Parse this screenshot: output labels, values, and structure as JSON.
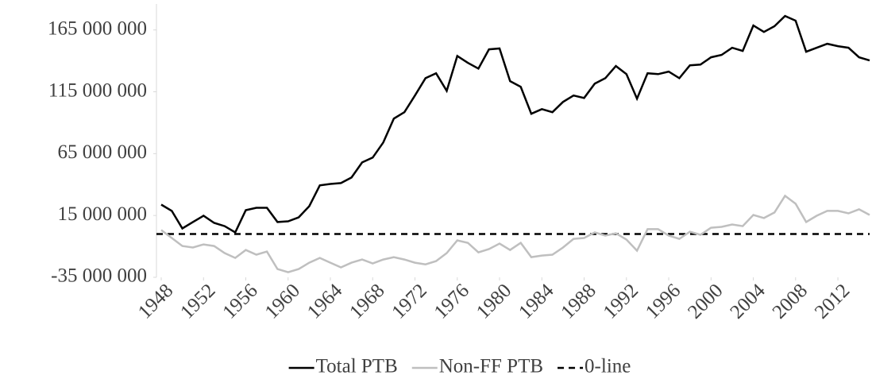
{
  "chart_data": {
    "type": "line",
    "x": [
      1948,
      1949,
      1950,
      1951,
      1952,
      1953,
      1954,
      1955,
      1956,
      1957,
      1958,
      1959,
      1960,
      1961,
      1962,
      1963,
      1964,
      1965,
      1966,
      1967,
      1968,
      1969,
      1970,
      1971,
      1972,
      1973,
      1974,
      1975,
      1976,
      1977,
      1978,
      1979,
      1980,
      1981,
      1982,
      1983,
      1984,
      1985,
      1986,
      1987,
      1988,
      1989,
      1990,
      1991,
      1992,
      1993,
      1994,
      1995,
      1996,
      1997,
      1998,
      1999,
      2000,
      2001,
      2002,
      2003,
      2004,
      2005,
      2006,
      2007,
      2008,
      2009,
      2010,
      2011,
      2012,
      2013,
      2014,
      2015
    ],
    "xlim": [
      1948,
      2015
    ],
    "xticks": [
      1948,
      1952,
      1956,
      1960,
      1964,
      1968,
      1972,
      1976,
      1980,
      1984,
      1988,
      1992,
      1996,
      2000,
      2004,
      2008,
      2012
    ],
    "ylim": [
      -35000000,
      186000000
    ],
    "yticks": [
      {
        "value": 165000000,
        "label": "165 000 000"
      },
      {
        "value": 115000000,
        "label": "115 000 000"
      },
      {
        "value": 65000000,
        "label": "65 000 000"
      },
      {
        "value": 15000000,
        "label": "15 000 000"
      },
      {
        "value": -35000000,
        "label": "-35 000 000"
      }
    ],
    "series": [
      {
        "name": "Total PTB",
        "color": "#000000",
        "values": [
          23800000,
          18700000,
          4500000,
          9700000,
          14800000,
          9000000,
          6400000,
          1300000,
          19300000,
          21200000,
          21200000,
          9700000,
          10300000,
          13500000,
          22500000,
          39300000,
          40500000,
          41200000,
          45700000,
          57900000,
          61800000,
          74000000,
          93300000,
          98500000,
          112000000,
          126000000,
          130000000,
          115800000,
          144000000,
          138400000,
          133800000,
          149300000,
          150000000,
          123600000,
          119000000,
          97200000,
          101000000,
          98500000,
          106800000,
          112000000,
          110000000,
          121600000,
          126000000,
          135800000,
          129300000,
          109400000,
          130000000,
          129300000,
          131300000,
          126000000,
          136400000,
          137000000,
          142900000,
          144800000,
          150600000,
          148000000,
          168600000,
          163400000,
          168000000,
          176300000,
          172500000,
          147400000,
          150600000,
          153800000,
          151900000,
          150600000,
          142900000,
          140300000
        ]
      },
      {
        "name": "Non-FF PTB",
        "color": "#bfbfbf",
        "values": [
          3200000,
          -3200000,
          -9700000,
          -10900000,
          -8400000,
          -9700000,
          -15400000,
          -19300000,
          -12900000,
          -16700000,
          -14200000,
          -28300000,
          -30900000,
          -28300000,
          -23200000,
          -19300000,
          -23200000,
          -27000000,
          -23200000,
          -20600000,
          -23800000,
          -20600000,
          -18700000,
          -20600000,
          -23200000,
          -24500000,
          -21900000,
          -15400000,
          -5100000,
          -7100000,
          -14800000,
          -12200000,
          -7700000,
          -12900000,
          -7100000,
          -18700000,
          -17400000,
          -16700000,
          -10900000,
          -3900000,
          -3200000,
          1300000,
          -1300000,
          600000,
          -4500000,
          -13500000,
          3900000,
          3900000,
          -1300000,
          -3900000,
          1900000,
          -600000,
          5100000,
          5800000,
          7700000,
          6400000,
          15400000,
          12900000,
          17400000,
          30900000,
          24500000,
          9700000,
          14800000,
          18700000,
          18700000,
          16700000,
          20000000,
          15400000
        ]
      }
    ],
    "reference_line": {
      "name": "0-line",
      "value": 0,
      "color": "#000000",
      "dashed": true
    },
    "legend": "bottom"
  }
}
